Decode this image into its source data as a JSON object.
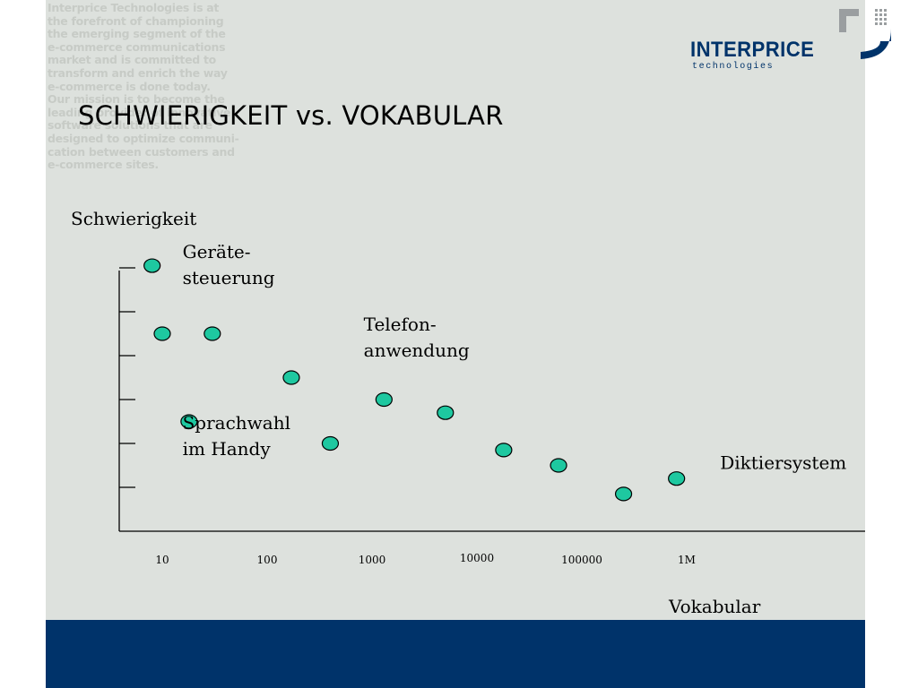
{
  "slide": {
    "title": "SCHWIERIGKEIT vs. VOKABULAR",
    "background_text": "Interprice Technologies is at\nthe forefront of championing\nthe emerging segment of the\ne-commerce communications\nmarket and is committed to\ntransform and enrich the way\ne-commerce is done today.\nOur mission is to become the\nleading provider of innovative\nsoftware solutions that are\ndesigned to optimize communi-\ncation between customers and\ne-commerce sites.",
    "logo": {
      "name": "INTERPRICE",
      "sub": "technologies",
      "color": "#00336a",
      "icon": "interprice-logo-icon"
    },
    "colors": {
      "background": "#dde1dd",
      "footer": "#00336a",
      "marker": "#1ec8a0",
      "axis": "#000000"
    }
  },
  "chart_data": {
    "type": "scatter",
    "title": "SCHWIERIGKEIT vs. VOKABULAR",
    "ylabel": "Schwierigkeit",
    "xlabel": "Vokabular",
    "x_scale": "log",
    "x_ticks": [
      {
        "value": 10,
        "label": "10"
      },
      {
        "value": 100,
        "label": "100"
      },
      {
        "value": 1000,
        "label": "1000"
      },
      {
        "value": 10000,
        "label": "10000"
      },
      {
        "value": 100000,
        "label": "100000"
      },
      {
        "value": 1000000,
        "label": "1M"
      }
    ],
    "y_ticks": [
      1,
      2,
      3,
      4,
      5,
      6
    ],
    "y_tick_labels": false,
    "ylim": [
      0,
      6
    ],
    "grid": false,
    "legend": "none",
    "points": [
      {
        "x": 8,
        "y": 6.05
      },
      {
        "x": 10,
        "y": 4.5
      },
      {
        "x": 30,
        "y": 4.5
      },
      {
        "x": 18,
        "y": 2.5
      },
      {
        "x": 170,
        "y": 3.5
      },
      {
        "x": 400,
        "y": 2
      },
      {
        "x": 1300,
        "y": 3
      },
      {
        "x": 5000,
        "y": 2.7
      },
      {
        "x": 18000,
        "y": 1.85
      },
      {
        "x": 60000,
        "y": 1.5
      },
      {
        "x": 250000,
        "y": 0.85
      },
      {
        "x": 800000,
        "y": 1.2
      }
    ],
    "annotations": [
      {
        "lines": [
          "Geräte-",
          "steuerung"
        ],
        "x": 15,
        "y": 6.1
      },
      {
        "lines": [
          "Telefon-",
          "anwendung"
        ],
        "x": 800,
        "y": 4.45
      },
      {
        "lines": [
          "Sprachwahl",
          "im Handy"
        ],
        "x": 15,
        "y": 2.2
      },
      {
        "lines": [
          "Diktiersystem"
        ],
        "x": 2000000,
        "y": 1.3
      }
    ]
  }
}
